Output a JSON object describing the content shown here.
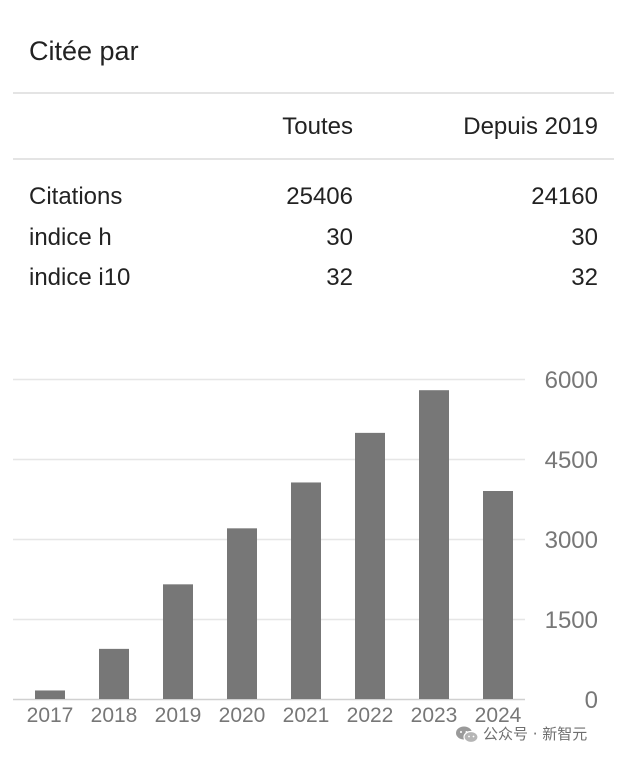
{
  "header": {
    "title": "Citée par"
  },
  "table": {
    "columns": [
      "",
      "Toutes",
      "Depuis 2019"
    ],
    "rows": [
      {
        "label": "Citations",
        "all": "25406",
        "since": "24160"
      },
      {
        "label": "indice h",
        "all": "30",
        "since": "30"
      },
      {
        "label": "indice i10",
        "all": "32",
        "since": "32"
      }
    ]
  },
  "chart_data": {
    "type": "bar",
    "categories": [
      "2017",
      "2018",
      "2019",
      "2020",
      "2021",
      "2022",
      "2023",
      "2024"
    ],
    "values": [
      160,
      940,
      2150,
      3200,
      4060,
      4990,
      5790,
      3900
    ],
    "ylim": [
      0,
      6000
    ],
    "yticks": [
      0,
      1500,
      3000,
      4500,
      6000
    ],
    "grid": true,
    "bar_color": "#777777",
    "grid_color": "#e6e6e6"
  },
  "watermark": {
    "text": "公众号 · 新智元",
    "icon": "wechat-icon"
  }
}
